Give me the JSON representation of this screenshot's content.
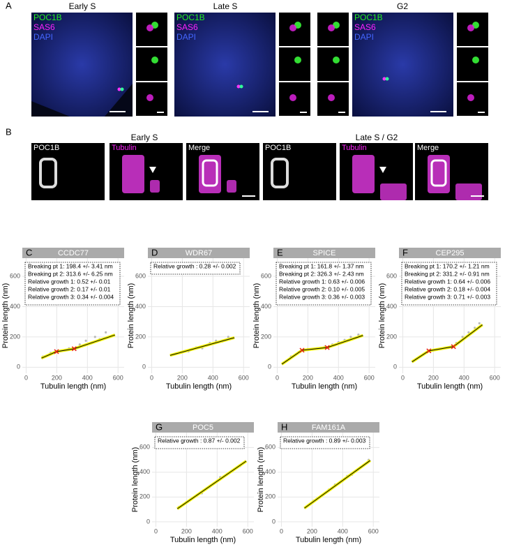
{
  "panel_a": {
    "letter": "A",
    "columns": [
      {
        "title": "Early S",
        "legend": [
          "POC1B",
          "SAS6",
          "DAPI"
        ]
      },
      {
        "title": "Late S",
        "legend": [
          "POC1B",
          "SAS6",
          "DAPI"
        ]
      },
      {
        "title": "G2",
        "legend": [
          "POC1B",
          "SAS6",
          "DAPI"
        ]
      }
    ]
  },
  "panel_b": {
    "letter": "B",
    "groups": [
      {
        "title": "Early S",
        "channels": [
          "POC1B",
          "Tubulin",
          "Merge"
        ]
      },
      {
        "title": "Late S / G2",
        "channels": [
          "POC1B",
          "Tubulin",
          "Merge"
        ]
      }
    ]
  },
  "chart_data": [
    {
      "type": "line",
      "letter": "C",
      "title": "CCDC77",
      "xlabel": "Tubulin length (nm)",
      "ylabel": "Protein length (nm)",
      "annotation": [
        "Breaking pt 1: 198.4 +/- 3.41 nm",
        "Breaking pt 2: 313.6 +/- 6.25 nm",
        "Relative growth 1: 0.52 +/- 0.01",
        "Relative growth 2: 0.17 +/- 0.01",
        "Relative growth 3: 0.34 +/- 0.004"
      ],
      "xlim": [
        -25,
        640
      ],
      "ylim": [
        -40,
        720
      ],
      "xticks": [
        0,
        200,
        400,
        600
      ],
      "yticks": [
        0,
        200,
        400,
        600
      ],
      "grid": true,
      "points": {
        "color": "#aaaaaa",
        "x": [
          110,
          160,
          230,
          280,
          350,
          390,
          420,
          450,
          480,
          520,
          560
        ],
        "y": [
          70,
          95,
          110,
          125,
          150,
          175,
          160,
          200,
          185,
          230,
          205
        ]
      },
      "fit": {
        "color": "#000000",
        "band_color": "#f2f200",
        "x": [
          100,
          198.4,
          313.6,
          580
        ],
        "y": [
          60,
          103,
          122,
          213
        ]
      },
      "breaks": {
        "color": "#e41a1c",
        "x": [
          198.4,
          313.6
        ],
        "y": [
          103,
          122
        ]
      }
    },
    {
      "type": "line",
      "letter": "D",
      "title": "WDR67",
      "xlabel": "Tubulin length (nm)",
      "ylabel": "Protein length (nm)",
      "annotation": [
        "Relative growth : 0.28 +/- 0.002"
      ],
      "xlim": [
        -25,
        640
      ],
      "ylim": [
        -40,
        720
      ],
      "xticks": [
        0,
        200,
        400,
        600
      ],
      "yticks": [
        0,
        200,
        400,
        600
      ],
      "grid": true,
      "points": {
        "color": "#aaaaaa",
        "x": [
          130,
          190,
          240,
          290,
          330,
          380,
          420,
          460,
          500,
          530
        ],
        "y": [
          80,
          100,
          105,
          130,
          125,
          160,
          175,
          170,
          200,
          190
        ]
      },
      "fit": {
        "color": "#000000",
        "band_color": "#f2f200",
        "x": [
          120,
          540
        ],
        "y": [
          78,
          195
        ]
      }
    },
    {
      "type": "line",
      "letter": "E",
      "title": "SPICE",
      "xlabel": "Tubulin length (nm)",
      "ylabel": "Protein length (nm)",
      "annotation": [
        "Breaking pt 1: 161.8 +/- 1.37 nm",
        "Breaking pt 2: 326.3 +/- 2.43 nm",
        "Relative growth 1: 0.63 +/- 0.006",
        "Relative growth 2: 0.10 +/- 0.005",
        "Relative growth 3: 0.36 +/- 0.003"
      ],
      "xlim": [
        -25,
        640
      ],
      "ylim": [
        -40,
        720
      ],
      "xticks": [
        0,
        200,
        400,
        600
      ],
      "yticks": [
        0,
        200,
        400,
        600
      ],
      "grid": true,
      "points": {
        "color": "#aaaaaa",
        "x": [
          40,
          90,
          140,
          200,
          260,
          310,
          360,
          400,
          440,
          480,
          530
        ],
        "y": [
          30,
          70,
          100,
          120,
          125,
          135,
          150,
          165,
          180,
          200,
          215
        ]
      },
      "fit": {
        "color": "#000000",
        "band_color": "#f2f200",
        "x": [
          30,
          161.8,
          326.3,
          560
        ],
        "y": [
          20,
          112,
          130,
          210
        ]
      },
      "breaks": {
        "color": "#e41a1c",
        "x": [
          161.8,
          326.3
        ],
        "y": [
          112,
          130
        ]
      }
    },
    {
      "type": "line",
      "letter": "F",
      "title": "CEP295",
      "xlabel": "Tubulin length (nm)",
      "ylabel": "Protein length (nm)",
      "annotation": [
        "Breaking pt 1: 170.2 +/- 1.21 nm",
        "Breaking pt 2: 331.2 +/- 0.91 nm",
        "Relative growth 1: 0.64 +/- 0.006",
        "Relative growth 2: 0.18 +/- 0.004",
        "Relative growth 3: 0.71 +/- 0.003"
      ],
      "xlim": [
        -25,
        640
      ],
      "ylim": [
        -40,
        720
      ],
      "xticks": [
        0,
        200,
        400,
        600
      ],
      "yticks": [
        0,
        200,
        400,
        600
      ],
      "grid": true,
      "points": {
        "color": "#aaaaaa",
        "x": [
          70,
          110,
          150,
          200,
          250,
          300,
          350,
          390,
          430,
          470,
          500
        ],
        "y": [
          40,
          70,
          95,
          115,
          120,
          130,
          160,
          200,
          230,
          260,
          290
        ]
      },
      "fit": {
        "color": "#000000",
        "band_color": "#f2f200",
        "x": [
          60,
          170.2,
          331.2,
          520
        ],
        "y": [
          35,
          108,
          136,
          280
        ]
      },
      "breaks": {
        "color": "#e41a1c",
        "x": [
          170.2,
          331.2
        ],
        "y": [
          108,
          136
        ]
      }
    },
    {
      "type": "line",
      "letter": "G",
      "title": "POC5",
      "xlabel": "Tubulin length (nm)",
      "ylabel": "Protein length (nm)",
      "annotation": [
        "Relative growth : 0.87 +/- 0.002"
      ],
      "xlim": [
        -25,
        640
      ],
      "ylim": [
        -40,
        720
      ],
      "xticks": [
        0,
        200,
        400,
        600
      ],
      "yticks": [
        0,
        200,
        400,
        600
      ],
      "grid": true,
      "points": {
        "color": "#aaaaaa",
        "x": [
          150,
          200,
          250,
          300,
          350,
          400,
          420,
          450,
          500,
          550,
          580
        ],
        "y": [
          120,
          160,
          200,
          230,
          280,
          330,
          360,
          370,
          410,
          450,
          480
        ]
      },
      "fit": {
        "color": "#000000",
        "band_color": "#f2f200",
        "x": [
          140,
          590
        ],
        "y": [
          105,
          490
        ]
      }
    },
    {
      "type": "line",
      "letter": "H",
      "title": "FAM161A",
      "xlabel": "Tubulin length (nm)",
      "ylabel": "Protein length (nm)",
      "annotation": [
        "Relative growth : 0.89 +/- 0.003"
      ],
      "xlim": [
        -25,
        640
      ],
      "ylim": [
        -40,
        720
      ],
      "xticks": [
        0,
        200,
        400,
        600
      ],
      "yticks": [
        0,
        200,
        400,
        600
      ],
      "grid": true,
      "points": {
        "color": "#aaaaaa",
        "x": [
          160,
          210,
          260,
          310,
          350,
          400,
          430,
          460,
          500,
          540,
          570
        ],
        "y": [
          120,
          170,
          210,
          260,
          300,
          330,
          370,
          380,
          420,
          460,
          500
        ]
      },
      "fit": {
        "color": "#000000",
        "band_color": "#f2f200",
        "x": [
          150,
          580
        ],
        "y": [
          110,
          495
        ]
      }
    }
  ]
}
